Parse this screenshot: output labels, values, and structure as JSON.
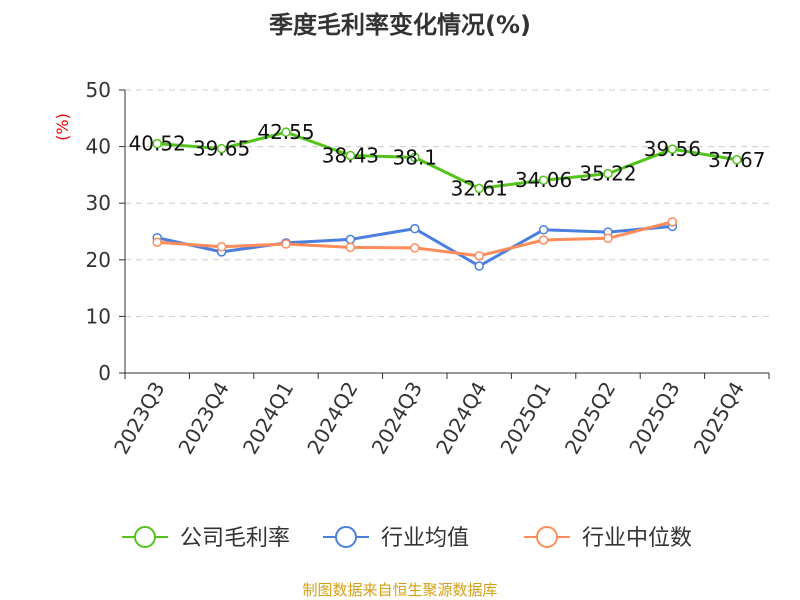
{
  "chart_data": {
    "type": "line",
    "title": "季度毛利率变化情况(%)",
    "ylabel": "(%)",
    "xlabel": "",
    "ylim": [
      0,
      50
    ],
    "yticks": [
      0,
      10,
      20,
      30,
      40,
      50
    ],
    "grid": true,
    "legend_position": "bottom",
    "categories": [
      "2023Q3",
      "2023Q4",
      "2024Q1",
      "2024Q2",
      "2024Q3",
      "2024Q4",
      "2025Q1",
      "2025Q2",
      "2025Q3",
      "2025Q4"
    ],
    "series": [
      {
        "name": "公司毛利率",
        "color": "#52c41a",
        "values": [
          40.52,
          39.65,
          42.55,
          38.43,
          38.1,
          32.61,
          34.06,
          35.22,
          39.56,
          37.67
        ],
        "labels": [
          "40.52",
          "39.65",
          "42.55",
          "38.43",
          "38.1",
          "32.61",
          "34.06",
          "35.22",
          "39.56",
          "37.67"
        ]
      },
      {
        "name": "行业均值",
        "color": "#4a7fe0",
        "values": [
          23.9,
          21.4,
          23.0,
          23.6,
          25.5,
          18.9,
          25.3,
          24.9,
          25.9,
          null
        ]
      },
      {
        "name": "行业中位数",
        "color": "#ff8c5a",
        "values": [
          23.1,
          22.3,
          22.8,
          22.2,
          22.1,
          20.7,
          23.5,
          23.8,
          26.7,
          null
        ]
      }
    ],
    "source": "制图数据来自恒生聚源数据库"
  }
}
